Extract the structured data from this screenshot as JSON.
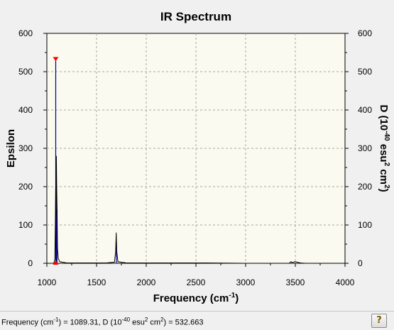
{
  "status": {
    "frequency_label": "Frequency (cm",
    "frequency_exp": "-1",
    "frequency_value": ") = 1089.31, D (10",
    "d_exp": "-40",
    "d_unit": " esu",
    "d_unit_exp": "2",
    "d_unit_end": " cm",
    "d_unit_end_exp": "2",
    "d_value": ") = 532.663"
  },
  "help_button": {
    "icon": "question-help-icon",
    "label": "?"
  },
  "chart_data": {
    "type": "line",
    "title": "IR Spectrum",
    "xlabel": "Frequency (cm",
    "xlabel_exp": "-1",
    "xlabel_end": ")",
    "ylabel_left": "Epsilon",
    "ylabel_right": "D (10",
    "ylabel_right_exp1": "-40",
    "ylabel_right_mid": " esu",
    "ylabel_right_exp2": "2",
    "ylabel_right_mid2": " cm",
    "ylabel_right_exp3": "2",
    "ylabel_right_end": ")",
    "xlim": [
      1000,
      4000
    ],
    "ylim": [
      0,
      600
    ],
    "x_ticks": [
      "1000",
      "1500",
      "2000",
      "2500",
      "3000",
      "3500",
      "4000"
    ],
    "y_ticks": [
      "0",
      "100",
      "200",
      "300",
      "400",
      "500",
      "600"
    ],
    "y_ticks_right": [
      "0",
      "100",
      "200",
      "300",
      "400",
      "500",
      "600"
    ],
    "grid": true,
    "plot_background": "#fafaf0",
    "line_color": "#000000",
    "stick_color": "#00007f",
    "marker_color": "#ff0000",
    "selected_peak": {
      "x": 1089.31,
      "d": 532.663
    },
    "sticks": [
      {
        "x": 1089.31,
        "y": 532.663
      },
      {
        "x": 1095,
        "y": 200
      },
      {
        "x": 1102,
        "y": 140
      },
      {
        "x": 1700,
        "y": 55
      }
    ],
    "spectrum": [
      [
        1000,
        0
      ],
      [
        1070,
        0
      ],
      [
        1080,
        10
      ],
      [
        1085,
        100
      ],
      [
        1089,
        200
      ],
      [
        1092,
        120
      ],
      [
        1096,
        280
      ],
      [
        1099,
        190
      ],
      [
        1103,
        140
      ],
      [
        1107,
        40
      ],
      [
        1115,
        12
      ],
      [
        1130,
        4
      ],
      [
        1200,
        1
      ],
      [
        1600,
        1
      ],
      [
        1680,
        3
      ],
      [
        1692,
        30
      ],
      [
        1698,
        80
      ],
      [
        1703,
        32
      ],
      [
        1715,
        4
      ],
      [
        1800,
        1
      ],
      [
        2600,
        1
      ],
      [
        3000,
        0
      ],
      [
        3440,
        0
      ],
      [
        3455,
        4
      ],
      [
        3470,
        2
      ],
      [
        3500,
        4
      ],
      [
        3550,
        1
      ],
      [
        3600,
        0
      ],
      [
        4000,
        0
      ]
    ]
  }
}
